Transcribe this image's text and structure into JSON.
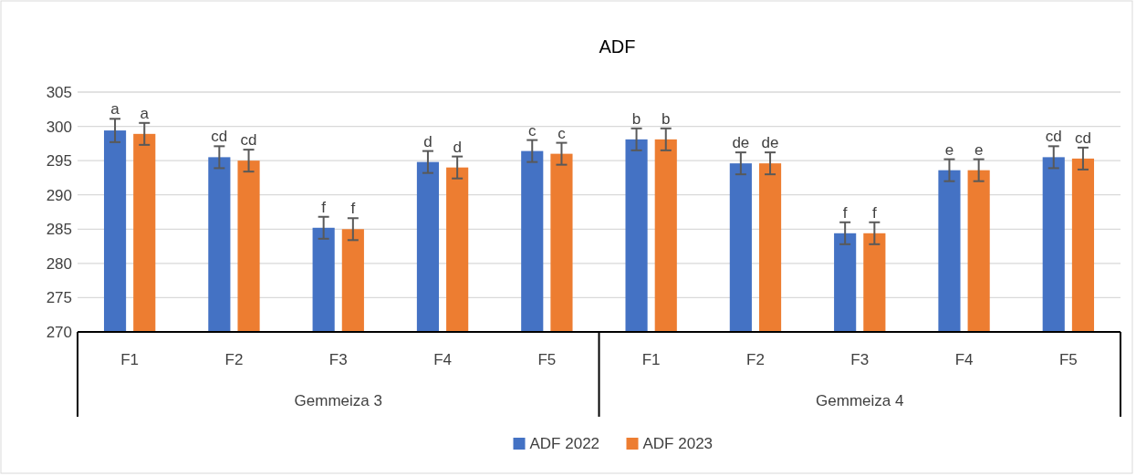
{
  "chart_data": {
    "type": "bar",
    "title": "ADF",
    "categories": [
      "F1",
      "F2",
      "F3",
      "F4",
      "F5",
      "F1",
      "F2",
      "F3",
      "F4",
      "F5"
    ],
    "annotations": [
      "Gemmeiza 3",
      "Gemmeiza 4"
    ],
    "series": [
      {
        "name": "ADF 2022",
        "color": "#4472c4",
        "values": [
          299.4,
          295.5,
          285.2,
          294.8,
          296.4,
          298.1,
          294.6,
          284.4,
          293.6,
          295.5
        ],
        "errors": [
          1.7,
          1.6,
          1.6,
          1.6,
          1.6,
          1.6,
          1.6,
          1.6,
          1.6,
          1.6
        ],
        "value_labels": [
          "a",
          "cd",
          "f",
          "d",
          "c",
          "b",
          "de",
          "f",
          "e",
          "cd"
        ]
      },
      {
        "name": "ADF 2023",
        "color": "#ed7d31",
        "values": [
          298.9,
          295.0,
          285.0,
          294.0,
          296.0,
          298.1,
          294.6,
          284.4,
          293.6,
          295.3
        ],
        "errors": [
          1.6,
          1.6,
          1.6,
          1.6,
          1.6,
          1.6,
          1.6,
          1.6,
          1.6,
          1.6
        ],
        "value_labels": [
          "a",
          "cd",
          "f",
          "d",
          "c",
          "b",
          "de",
          "f",
          "e",
          "cd"
        ]
      }
    ],
    "ylim": [
      270,
      305
    ],
    "yticks": [
      270,
      275,
      280,
      285,
      290,
      295,
      300,
      305
    ],
    "grid": "y",
    "legend": "bottom"
  }
}
